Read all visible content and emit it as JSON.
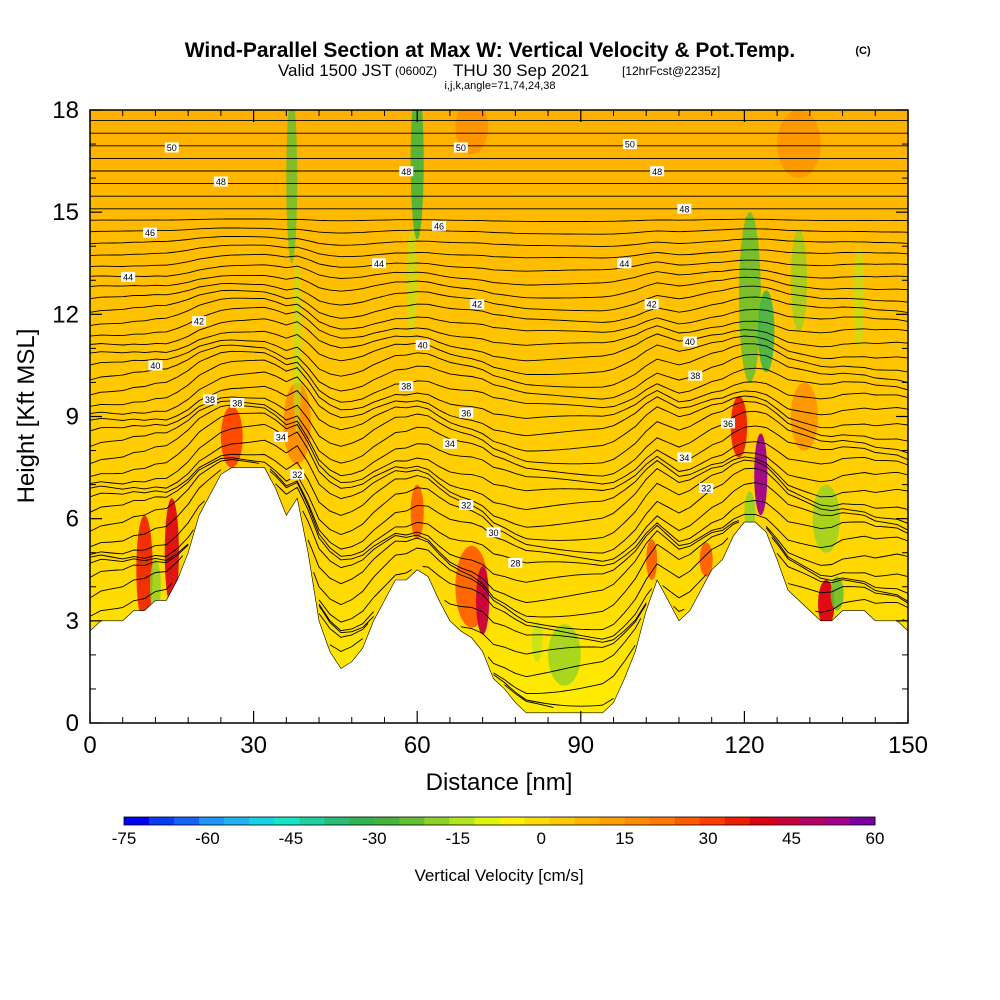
{
  "header": {
    "title": "Wind-Parallel Section at Max W: Vertical Velocity & Pot.Temp.",
    "title_units": "(C)",
    "subtitle_a": "Valid 1500 JST",
    "subtitle_b": "(0600Z)",
    "subtitle_c": "THU 30 Sep 2021",
    "subtitle_d": "[12hrFcst@2235z]",
    "indices": "i,j,k,angle=71,74,24,38"
  },
  "colorbar": {
    "label": "Vertical Velocity [cm/s]",
    "ticks": [
      "-75",
      "-60",
      "-45",
      "-30",
      "-15",
      "0",
      "15",
      "30",
      "45",
      "60"
    ],
    "colors": [
      "#0000f0",
      "#0a3cf5",
      "#1464fa",
      "#1e96fa",
      "#1eb4f0",
      "#14d2e6",
      "#14e6c8",
      "#1ed2a0",
      "#28be78",
      "#32b450",
      "#46b43c",
      "#64be32",
      "#8cd228",
      "#b4e61e",
      "#dcf50f",
      "#fff000",
      "#ffdc00",
      "#ffc800",
      "#ffb400",
      "#ffa000",
      "#ff8c00",
      "#ff7800",
      "#ff5a00",
      "#ff3c00",
      "#f01e00",
      "#dc0014",
      "#c8003c",
      "#b40064",
      "#a0008c",
      "#7800a0"
    ]
  },
  "chart_data": {
    "type": "heatmap",
    "title": "Wind-Parallel Section at Max W: Vertical Velocity & Pot.Temp.",
    "xlabel": "Distance [nm]",
    "ylabel": "Height [Kft MSL]",
    "xlim": [
      0,
      150
    ],
    "ylim": [
      0,
      18
    ],
    "x_ticks": [
      "0",
      "30",
      "60",
      "90",
      "120",
      "150"
    ],
    "y_ticks": [
      "0",
      "3",
      "6",
      "9",
      "12",
      "15",
      "18"
    ],
    "color_variable": "Vertical Velocity [cm/s]",
    "color_range": [
      -75,
      60
    ],
    "contour_variable": "Potential Temperature (C)",
    "terrain_profile": {
      "distance_nm": [
        0,
        2,
        4,
        6,
        8,
        10,
        12,
        14,
        16,
        18,
        20,
        22,
        24,
        26,
        28,
        30,
        32,
        34,
        36,
        38,
        40,
        42,
        44,
        46,
        48,
        50,
        52,
        54,
        56,
        58,
        60,
        62,
        64,
        66,
        68,
        70,
        72,
        74,
        76,
        78,
        80,
        82,
        84,
        86,
        88,
        90,
        92,
        94,
        96,
        98,
        100,
        102,
        104,
        106,
        108,
        110,
        112,
        114,
        116,
        118,
        120,
        122,
        124,
        126,
        128,
        130,
        132,
        134,
        136,
        138,
        140,
        142,
        144,
        146,
        148,
        150
      ],
      "height_kft": [
        2.7,
        3.0,
        3.0,
        3.0,
        3.3,
        3.3,
        3.6,
        3.6,
        4.2,
        5.0,
        6.1,
        6.7,
        7.3,
        7.5,
        7.5,
        7.5,
        7.5,
        6.9,
        6.1,
        6.6,
        5.0,
        3.0,
        2.1,
        1.6,
        1.8,
        2.2,
        3.0,
        3.6,
        4.2,
        4.2,
        4.5,
        4.3,
        3.6,
        3.0,
        2.7,
        2.5,
        2.1,
        1.3,
        1.0,
        0.6,
        0.3,
        0.3,
        0.3,
        0.3,
        0.3,
        0.3,
        0.3,
        0.3,
        0.6,
        1.3,
        2.1,
        3.3,
        4.2,
        3.6,
        3.0,
        3.3,
        3.9,
        4.5,
        4.8,
        5.5,
        5.9,
        5.9,
        5.6,
        4.8,
        3.9,
        3.6,
        3.3,
        3.0,
        3.0,
        3.3,
        3.3,
        3.3,
        3.0,
        3.0,
        3.0,
        2.7
      ]
    },
    "contour_labels": [
      {
        "value": "50",
        "x": 15,
        "y": 16.9
      },
      {
        "value": "50",
        "x": 68,
        "y": 16.9
      },
      {
        "value": "50",
        "x": 99,
        "y": 17.0
      },
      {
        "value": "48",
        "x": 24,
        "y": 15.9
      },
      {
        "value": "48",
        "x": 58,
        "y": 16.2
      },
      {
        "value": "48",
        "x": 104,
        "y": 16.2
      },
      {
        "value": "48",
        "x": 109,
        "y": 15.1
      },
      {
        "value": "46",
        "x": 11,
        "y": 14.4
      },
      {
        "value": "46",
        "x": 64,
        "y": 14.6
      },
      {
        "value": "44",
        "x": 7,
        "y": 13.1
      },
      {
        "value": "44",
        "x": 53,
        "y": 13.5
      },
      {
        "value": "44",
        "x": 98,
        "y": 13.5
      },
      {
        "value": "42",
        "x": 20,
        "y": 11.8
      },
      {
        "value": "42",
        "x": 71,
        "y": 12.3
      },
      {
        "value": "42",
        "x": 103,
        "y": 12.3
      },
      {
        "value": "40",
        "x": 12,
        "y": 10.5
      },
      {
        "value": "40",
        "x": 61,
        "y": 11.1
      },
      {
        "value": "40",
        "x": 110,
        "y": 11.2
      },
      {
        "value": "38",
        "x": 22,
        "y": 9.5
      },
      {
        "value": "38",
        "x": 27,
        "y": 9.4
      },
      {
        "value": "38",
        "x": 58,
        "y": 9.9
      },
      {
        "value": "38",
        "x": 111,
        "y": 10.2
      },
      {
        "value": "36",
        "x": 69,
        "y": 9.1
      },
      {
        "value": "36",
        "x": 117,
        "y": 8.8
      },
      {
        "value": "34",
        "x": 35,
        "y": 8.4
      },
      {
        "value": "34",
        "x": 66,
        "y": 8.2
      },
      {
        "value": "34",
        "x": 109,
        "y": 7.8
      },
      {
        "value": "32",
        "x": 38,
        "y": 7.3
      },
      {
        "value": "32",
        "x": 69,
        "y": 6.4
      },
      {
        "value": "32",
        "x": 113,
        "y": 6.9
      },
      {
        "value": "30",
        "x": 74,
        "y": 5.6
      },
      {
        "value": "28",
        "x": 78,
        "y": 4.7
      }
    ]
  }
}
